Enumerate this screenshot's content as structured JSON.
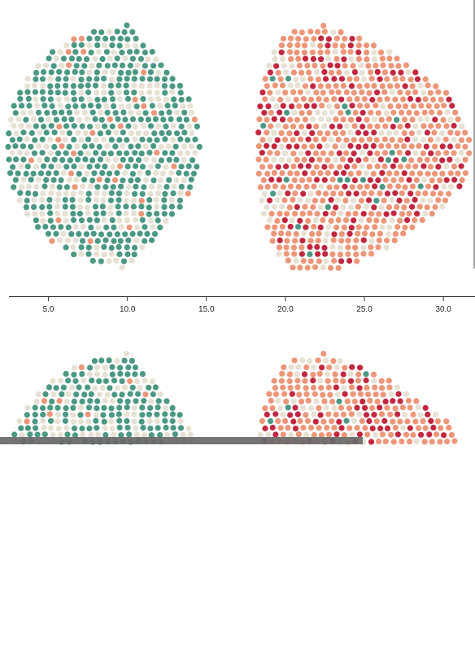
{
  "chart_data": {
    "type": "scatter",
    "subtype": "beeswarm",
    "title": "",
    "xlabel": "",
    "ylabel": "",
    "xlim": [
      2.5,
      32.0
    ],
    "xticks": [
      "5.0",
      "10.0",
      "15.0",
      "20.0",
      "25.0",
      "30.0"
    ],
    "grid": false,
    "legend": "none",
    "category_colors": {
      "green": "#4b9883",
      "beige": "#e6e1d2",
      "salmon": "#ee9679",
      "red": "#c2273f"
    },
    "groups": [
      {
        "x_range": [
          3.0,
          14.6
        ],
        "center": 10.5,
        "point_count": 340,
        "composition": {
          "green": 0.6,
          "beige": 0.35,
          "salmon": 0.05,
          "red": 0.0
        }
      },
      {
        "x_range": [
          18.5,
          31.5
        ],
        "center": 22.5,
        "point_count": 330,
        "composition": {
          "green": 0.03,
          "beige": 0.17,
          "salmon": 0.58,
          "red": 0.22
        }
      }
    ]
  }
}
